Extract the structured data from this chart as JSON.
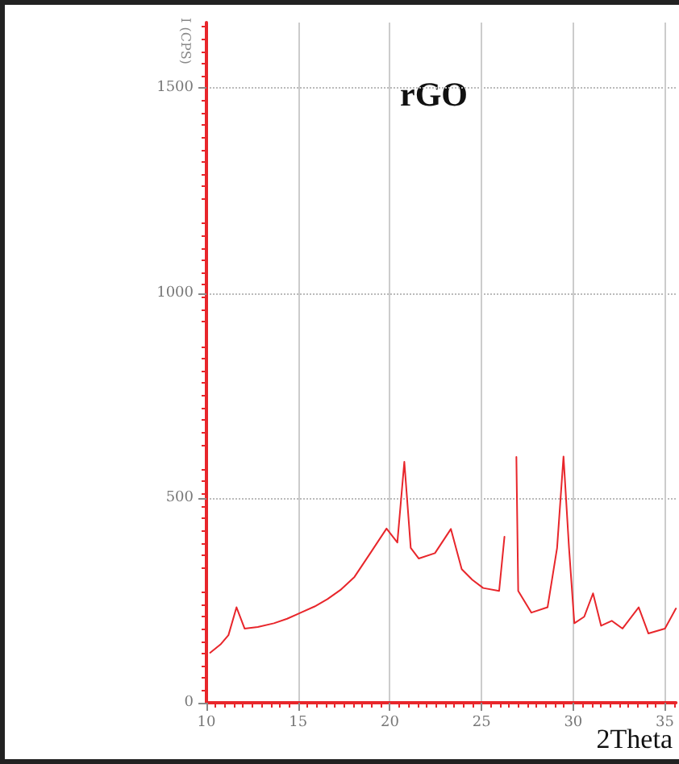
{
  "chart_data": {
    "type": "line",
    "xlabel": "2Theta",
    "ylabel": "I (CPS)",
    "annotations": [
      "rGO"
    ],
    "xlim": [
      10,
      35.6
    ],
    "xticks": [
      10,
      15,
      20,
      25,
      30,
      35
    ],
    "ylim": [
      0,
      1660
    ],
    "yticks": [
      0,
      500,
      1000,
      1500
    ],
    "grid": true,
    "marker": "none",
    "line_style": "solid",
    "x": [
      10.2,
      10.76,
      11.2,
      11.64,
      12.08,
      12.8,
      13.68,
      14.4,
      15.15,
      15.9,
      16.6,
      17.3,
      18.07,
      18.95,
      19.82,
      20.41,
      20.79,
      21.14,
      21.58,
      22.46,
      23.33,
      23.92,
      24.5,
      25.09,
      25.96,
      26.25,
      26.45,
      26.75,
      26.9,
      27.0,
      27.72,
      28.6,
      29.12,
      29.47,
      29.77,
      30.06,
      30.6,
      31.08,
      31.52,
      32.1,
      32.69,
      33.57,
      34.1,
      35.0,
      35.6
    ],
    "series": [
      {
        "color": "#e8262b",
        "values": [
          122,
          142,
          165,
          233,
          181,
          185,
          194,
          205,
          220,
          235,
          253,
          275,
          307,
          366,
          425,
          391,
          588,
          378,
          352,
          365,
          424,
          326,
          300,
          280,
          273,
          405,
          null,
          null,
          600,
          273,
          220,
          233,
          378,
          601,
          378,
          194,
          210,
          267,
          188,
          200,
          181,
          233,
          169,
          181,
          230
        ]
      }
    ]
  }
}
